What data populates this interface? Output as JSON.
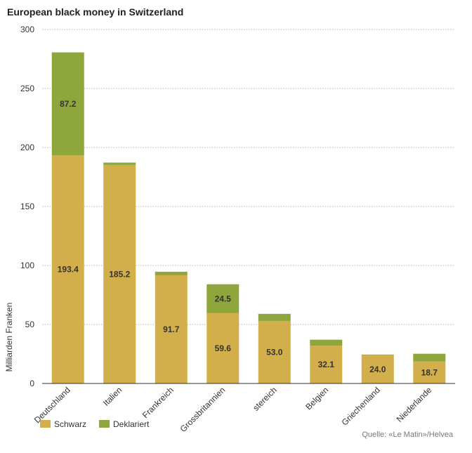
{
  "chart_data": {
    "type": "bar",
    "stacked": true,
    "title": "European black money in Switzerland",
    "ylabel": "Milliarden Franken",
    "xlabel": "",
    "ylim": [
      0,
      300
    ],
    "yticks": [
      0,
      50,
      100,
      150,
      200,
      250,
      300
    ],
    "grid": true,
    "legend_position": "bottom-left",
    "categories": [
      "Deutschland",
      "Italien",
      "Frankreich",
      "Grossbritannien",
      "stereich",
      "Belgien",
      "Griechenland",
      "Niederlande"
    ],
    "series": [
      {
        "name": "Schwarz",
        "color": "#d2af4b",
        "values": [
          193.4,
          185.2,
          91.7,
          59.6,
          53.0,
          32.1,
          24.0,
          18.7
        ],
        "labels": [
          "193.4",
          "185.2",
          "91.7",
          "59.6",
          "53.0",
          "32.1",
          "24.0",
          "18.7"
        ]
      },
      {
        "name": "Deklariert",
        "color": "#8ea63c",
        "values": [
          87.2,
          2.0,
          3.0,
          24.5,
          6.0,
          5.0,
          0.5,
          6.5
        ],
        "labels": [
          "87.2",
          "",
          "",
          "24.5",
          "",
          "",
          "",
          ""
        ]
      }
    ],
    "source": "Quelle: «Le Matin»/Helvea"
  }
}
